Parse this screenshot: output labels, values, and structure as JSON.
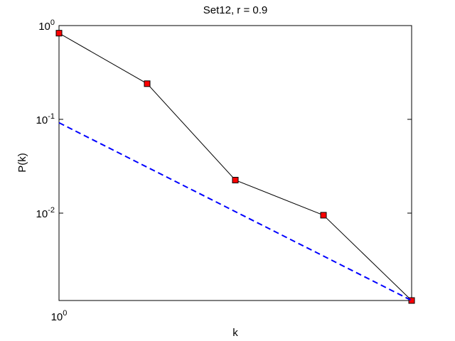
{
  "chart_data": {
    "type": "line",
    "title": "Set12, r = 0.9",
    "x_label": "k",
    "y_label": "P(k)",
    "xscale": "log",
    "yscale": "log",
    "xlim": [
      1,
      16
    ],
    "ylim": [
      0.00117,
      1
    ],
    "xticks": [
      {
        "value": 1,
        "label": "10^0"
      }
    ],
    "yticks": [
      {
        "value": 1,
        "label": "10^0"
      },
      {
        "value": 0.1,
        "label": "10^-1"
      },
      {
        "value": 0.01,
        "label": "10^-2"
      }
    ],
    "series": [
      {
        "color": "#000000",
        "marker": "square",
        "marker_color": "#ff0000",
        "dash": false,
        "x": [
          1,
          2,
          4,
          8,
          16
        ],
        "values": [
          0.83,
          0.24,
          0.0225,
          0.0095,
          0.00117
        ]
      },
      {
        "color": "#0000ff",
        "marker": "none",
        "dash": true,
        "x": [
          1,
          16
        ],
        "values": [
          0.092,
          0.00117
        ]
      }
    ]
  }
}
